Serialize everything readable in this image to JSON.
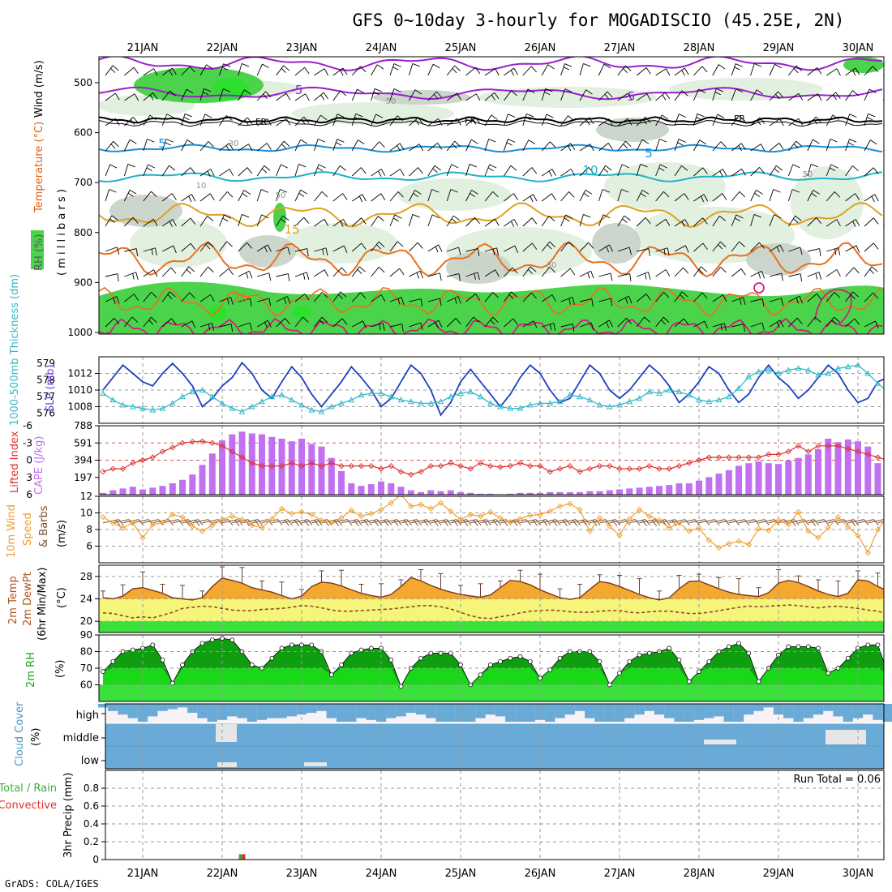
{
  "title": "GFS 0~10day 3-hourly for MOGADISCIO (45.25E, 2N)",
  "credit": "GrADS: COLA/IGES",
  "day_labels": [
    "21JAN",
    "22JAN",
    "23JAN",
    "24JAN",
    "25JAN",
    "26JAN",
    "27JAN",
    "28JAN",
    "29JAN",
    "30JAN"
  ],
  "colors": {
    "rh_green": "#4cd34c",
    "rh_light": "#dfeedd",
    "rh_gray": "#c8d2c8",
    "temp_purple": "#9b1fcf",
    "temp_blue": "#1a8fd6",
    "temp_cyan": "#20b2c8",
    "temp_orange1": "#e0a020",
    "temp_orange2": "#e87020",
    "temp_magenta": "#d0207a",
    "slp_blue": "#1f3fbf",
    "thick_cyan": "#34b8c8",
    "cape_purple": "#c070f0",
    "li_red": "#e03030",
    "wind_orange": "#f0a030",
    "wind_brown": "#7a5030",
    "temp_fill": "#f5a830",
    "dew_fill": "#f5f57a",
    "green_fill": "#3ce03c",
    "rh_dark": "#0f9e0f",
    "rh_mid": "#18d818",
    "cloud_blue": "#6aaad6",
    "cloud_white": "#f6f2f6"
  },
  "panels": {
    "upper_air": {
      "ylabel_rh": "RH (%)",
      "ylabel_temp": "Temperature (°C)",
      "ylabel_wind": "Wind (m/s)",
      "ylabel_units": "( m i l l i b a r s )",
      "y_ticks": [
        "500",
        "600",
        "700",
        "800",
        "900",
        "1000"
      ],
      "contour_labels": [
        {
          "text": "-5",
          "kind": "purple"
        },
        {
          "text": "-5",
          "kind": "purple"
        },
        {
          "text": "FR",
          "kind": "black"
        },
        {
          "text": "FR",
          "kind": "black"
        },
        {
          "text": "FR",
          "kind": "black"
        },
        {
          "text": "5",
          "kind": "blue"
        },
        {
          "text": "5",
          "kind": "blue"
        },
        {
          "text": "10",
          "kind": "cyan"
        },
        {
          "text": "15",
          "kind": "orange"
        },
        {
          "text": "20",
          "kind": "orange"
        },
        {
          "text": "50",
          "kind": "gray"
        },
        {
          "text": "30",
          "kind": "gray"
        },
        {
          "text": "10",
          "kind": "gray"
        },
        {
          "text": "50",
          "kind": "gray"
        },
        {
          "text": "30",
          "kind": "gray"
        },
        {
          "text": "50",
          "kind": "gray"
        }
      ]
    },
    "slp": {
      "ylabel_left": "1000-500mb Thickness (dm)",
      "ylabel_right": "SLP (mb)",
      "thickness_ticks": [
        "579",
        "578",
        "577",
        "576"
      ],
      "slp_ticks": [
        "1012",
        "1010",
        "1008"
      ]
    },
    "cape": {
      "ylabel_left": "Lifted Index",
      "ylabel_right": "CAPE (J/kg)",
      "li_ticks": [
        "-6",
        "-3",
        "0",
        "3",
        "6"
      ],
      "cape_ticks": [
        "788",
        "591",
        "394",
        "197"
      ]
    },
    "wind10m": {
      "ylabel_a": "10m Wind",
      "ylabel_b": "Speed",
      "ylabel_c": "& Barbs",
      "ylabel_units": "(m/s)",
      "y_ticks": [
        "12",
        "10",
        "8",
        "6"
      ]
    },
    "temp2m": {
      "ylabel_a": "2m Temp",
      "ylabel_b": "2m DewPt",
      "ylabel_c": "(6hr Min/Max)",
      "ylabel_units": "(°C)",
      "y_ticks": [
        "28",
        "24",
        "20"
      ]
    },
    "rh2m": {
      "ylabel": "2m RH",
      "ylabel_units": "(%)",
      "y_ticks": [
        "90",
        "80",
        "70",
        "60"
      ]
    },
    "cloud": {
      "ylabel": "Cloud Cover",
      "ylabel_units": "(%)",
      "levels": [
        "high",
        "middle",
        "low"
      ]
    },
    "precip": {
      "ylabel_a": "Total / Rain",
      "ylabel_b": "Convective",
      "ylabel_units": "3hr Precip (mm)",
      "y_ticks": [
        "0.8",
        "0.6",
        "0.4",
        "0.2",
        "0"
      ],
      "run_total": "Run Total = 0.06"
    }
  },
  "chart_data": {
    "type": "line",
    "x": "3-hourly steps, 80 points, 20JAN 12Z to 30JAN 09Z",
    "slp_mb": [
      1010,
      1011.5,
      1013,
      1012,
      1011,
      1010.5,
      1012,
      1013.2,
      1012,
      1010.5,
      1008,
      1009,
      1010.5,
      1011.5,
      1013.3,
      1012,
      1010,
      1009,
      1011,
      1012.8,
      1011.5,
      1009.5,
      1008,
      1009.5,
      1011,
      1012.8,
      1011.5,
      1010,
      1008,
      1009,
      1011,
      1013,
      1012,
      1010,
      1007,
      1008.5,
      1011,
      1012.5,
      1011,
      1009.5,
      1008,
      1009.5,
      1011.5,
      1013,
      1012,
      1010,
      1008.5,
      1009,
      1011,
      1013,
      1012,
      1010,
      1009,
      1010,
      1011.5,
      1013,
      1012,
      1010.5,
      1008.5,
      1009.5,
      1011,
      1012.8,
      1012,
      1010,
      1008.5,
      1009.5,
      1011.5,
      1013,
      1011.5,
      1010.5,
      1009,
      1010,
      1011.5,
      1013,
      1012,
      1010,
      1008.5,
      1009,
      1011,
      1011.5
    ],
    "thickness_dm": [
      577.2,
      576.8,
      576.5,
      576.4,
      576.3,
      576.2,
      576.3,
      576.6,
      577,
      577.3,
      577.4,
      577,
      576.6,
      576.3,
      576.1,
      576.4,
      576.7,
      577,
      577.1,
      576.8,
      576.5,
      576.2,
      576.1,
      576.4,
      576.6,
      576.8,
      577.1,
      577.2,
      577.2,
      577,
      576.8,
      576.7,
      576.6,
      576.6,
      576.7,
      577,
      577.2,
      577.3,
      577,
      576.6,
      576.4,
      576.3,
      576.3,
      576.5,
      576.6,
      576.6,
      576.7,
      577.1,
      577,
      576.8,
      576.5,
      576.4,
      576.5,
      576.7,
      576.9,
      577.3,
      577.2,
      577.4,
      577.3,
      577.1,
      576.8,
      576.7,
      576.8,
      577,
      577.5,
      578.2,
      578.5,
      578.6,
      578.4,
      578.6,
      578.7,
      578.6,
      578.3,
      578.4,
      578.7,
      578.8,
      578.9,
      578.4,
      577.8,
      577.3
    ],
    "lifted_index": [
      2,
      1.5,
      1.5,
      0.5,
      0,
      -0.5,
      -1.5,
      -2.2,
      -3,
      -3.2,
      -3.3,
      -3,
      -2.5,
      -1.5,
      -0.5,
      0.5,
      1,
      1,
      1,
      0.5,
      1,
      0.5,
      1,
      0.5,
      1,
      1,
      1,
      1,
      1.5,
      1,
      2,
      2.5,
      2,
      1,
      1,
      0.5,
      1,
      1.5,
      0.5,
      1,
      1.2,
      1,
      0.5,
      1,
      1,
      2,
      1.5,
      1,
      2,
      1.5,
      1,
      1,
      1.5,
      1.5,
      1.5,
      1,
      1.5,
      1.5,
      1,
      0.5,
      0,
      -0.5,
      -0.5,
      -0.5,
      -0.5,
      -0.5,
      -0.5,
      -1,
      -1,
      -1.5,
      -2.5,
      -1.5,
      -2.5,
      -2.5,
      -2.5,
      -2,
      -1.5,
      -1,
      -0.5,
      0
    ],
    "cape_jkg": [
      20,
      50,
      70,
      90,
      60,
      80,
      100,
      130,
      170,
      230,
      340,
      470,
      620,
      690,
      720,
      700,
      690,
      660,
      640,
      610,
      640,
      580,
      550,
      420,
      270,
      130,
      100,
      120,
      150,
      130,
      90,
      50,
      30,
      50,
      40,
      50,
      30,
      20,
      10,
      10,
      5,
      10,
      20,
      20,
      20,
      30,
      30,
      30,
      30,
      40,
      40,
      50,
      60,
      70,
      80,
      90,
      100,
      110,
      130,
      130,
      160,
      200,
      240,
      280,
      330,
      360,
      380,
      360,
      350,
      390,
      420,
      460,
      520,
      640,
      600,
      630,
      610,
      550,
      360,
      140
    ],
    "wind10m_ms": [
      9.5,
      8.8,
      8.2,
      8.8,
      7,
      8.6,
      8.8,
      9.8,
      9.5,
      8.4,
      7.8,
      8.5,
      9.2,
      9.6,
      9.2,
      8.5,
      8.2,
      9.3,
      10.5,
      9.9,
      10.1,
      9.8,
      9.1,
      8.8,
      9.4,
      10.3,
      9.6,
      9.9,
      10.4,
      11.2,
      12.2,
      10.8,
      11,
      10.5,
      11.2,
      10.2,
      9.2,
      9.8,
      9.6,
      10.1,
      9.4,
      8.9,
      9.3,
      9.7,
      9.8,
      10.2,
      10.8,
      11.1,
      10.4,
      7.8,
      9.4,
      8.4,
      7.3,
      9.3,
      10.4,
      9.6,
      9.1,
      8.2,
      8.8,
      7.8,
      8.2,
      6.7,
      5.8,
      6.3,
      6.6,
      6.2,
      8.1,
      7.9,
      9.1,
      8.6,
      10.1,
      7.8,
      7,
      8.2,
      9.5,
      8.3,
      7.3,
      5.2,
      8,
      9.6
    ],
    "temp2m_c": [
      24.2,
      24,
      24.5,
      25.8,
      26,
      25.5,
      25,
      24.2,
      24,
      23.8,
      24.2,
      26.2,
      27.7,
      27.3,
      26.8,
      26,
      25.6,
      25.2,
      24.6,
      24,
      24.5,
      26.2,
      27,
      26.8,
      26.3,
      25.6,
      25,
      24.6,
      24.3,
      24.8,
      26.2,
      27.8,
      27.2,
      26.4,
      25.7,
      25.2,
      24.8,
      24.5,
      24.3,
      24.7,
      26,
      27.3,
      27.1,
      26.5,
      25.6,
      24.9,
      24.2,
      23.9,
      24.2,
      25.7,
      27.1,
      26.8,
      26.2,
      25.5,
      24.8,
      24.2,
      23.8,
      24.2,
      25.8,
      27.1,
      27.2,
      26.5,
      25.8,
      25.2,
      24.8,
      24.6,
      24.4,
      25.1,
      26.8,
      27.3,
      26.9,
      26.2,
      25.4,
      24.8,
      24.4,
      25,
      27.4,
      27.2,
      26.2,
      25.4
    ],
    "dewpt2m_c": [
      21.5,
      21.4,
      21,
      20.6,
      20.8,
      20.6,
      21.1,
      21.6,
      22.3,
      22.5,
      22.7,
      22.6,
      22.3,
      22,
      21.9,
      21.9,
      22.1,
      22.2,
      22.3,
      22.5,
      22.8,
      22.7,
      22.4,
      22,
      21.8,
      21.8,
      21.9,
      22,
      22.1,
      22.2,
      22.4,
      22.6,
      22.8,
      22.8,
      22.6,
      22.2,
      21.6,
      21,
      20.6,
      20.5,
      20.8,
      21.1,
      21.5,
      21.8,
      21.9,
      22,
      21.9,
      21.7,
      21.6,
      21.6,
      21.8,
      21.9,
      21.9,
      21.6,
      21.5,
      21.7,
      21.8,
      21.8,
      21.6,
      21.4,
      21.4,
      21.6,
      21.9,
      22.2,
      22.5,
      22.7,
      22.6,
      22.7,
      22.8,
      22.9,
      22.8,
      22.6,
      22.4,
      22.6,
      22.7,
      22.5,
      22.3,
      22,
      21.8,
      21.3
    ],
    "rh2m_pct": [
      68,
      74,
      80,
      81,
      82,
      84,
      75,
      61,
      72,
      80,
      85,
      87,
      88,
      87,
      80,
      72,
      70,
      76,
      82,
      84,
      84,
      84,
      80,
      66,
      72,
      79,
      81,
      82,
      82,
      75,
      59,
      70,
      76,
      79,
      79,
      79,
      72,
      60,
      66,
      72,
      74,
      76,
      77,
      74,
      64,
      69,
      76,
      80,
      80,
      80,
      74,
      60,
      67,
      74,
      78,
      79,
      80,
      82,
      75,
      62,
      68,
      74,
      80,
      83,
      85,
      79,
      62,
      70,
      78,
      83,
      83,
      83,
      82,
      67,
      70,
      76,
      82,
      84,
      84,
      67
    ],
    "cloud_high_pct": [
      20,
      40,
      60,
      80,
      100,
      70,
      40,
      30,
      20,
      50,
      80,
      100,
      90,
      70,
      80,
      100,
      90,
      80,
      80,
      70,
      60,
      50,
      40,
      80,
      100,
      100,
      80,
      90,
      100,
      80,
      70,
      50,
      60,
      80,
      100,
      100,
      100,
      100,
      80,
      60,
      70,
      100,
      100,
      100,
      90,
      100,
      80,
      60,
      40,
      80,
      100,
      100,
      100,
      80,
      60,
      40,
      60,
      80,
      100,
      100,
      90,
      80,
      70,
      100,
      100,
      60,
      40,
      20,
      60,
      80,
      100,
      80,
      60,
      40,
      70,
      100,
      80,
      60,
      90,
      100
    ],
    "precip_total_mm": [
      0,
      0,
      0,
      0,
      0,
      0,
      0,
      0,
      0,
      0,
      0,
      0,
      0,
      0,
      0.06,
      0,
      0,
      0,
      0,
      0,
      0,
      0,
      0,
      0,
      0,
      0,
      0,
      0,
      0,
      0,
      0,
      0,
      0,
      0,
      0,
      0,
      0,
      0,
      0,
      0,
      0,
      0,
      0,
      0,
      0,
      0,
      0,
      0,
      0,
      0,
      0,
      0,
      0,
      0,
      0,
      0,
      0,
      0,
      0,
      0,
      0,
      0,
      0,
      0,
      0,
      0,
      0,
      0,
      0,
      0,
      0,
      0,
      0,
      0,
      0,
      0,
      0,
      0,
      0,
      0
    ],
    "axes": {
      "pressure_mb": [
        450,
        1000
      ],
      "thickness_dm": [
        575.4,
        579.4
      ],
      "slp_mb": [
        1006,
        1014
      ],
      "lifted_index": [
        -6,
        6
      ],
      "cape_jkg": [
        0,
        788
      ],
      "wind_ms": [
        4,
        12
      ],
      "temp_c": [
        18,
        30
      ],
      "rh_pct": [
        50,
        90
      ],
      "precip_mm": [
        0,
        1
      ]
    }
  }
}
